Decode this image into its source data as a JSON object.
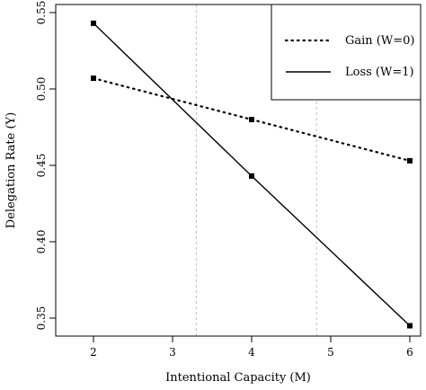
{
  "chart_data": {
    "type": "line",
    "xlabel": "Intentional Capacity (M)",
    "ylabel": "Delegation Rate (Y)",
    "xlim": [
      2,
      6
    ],
    "ylim": [
      0.345,
      0.55
    ],
    "xticks": [
      2,
      3,
      4,
      5,
      6
    ],
    "yticks": [
      0.35,
      0.4,
      0.45,
      0.5,
      0.55
    ],
    "ytick_labels": [
      "0.35",
      "0.40",
      "0.45",
      "0.50",
      "0.55"
    ],
    "reference_lines_x": [
      3.3,
      4.82
    ],
    "grid": false,
    "legend_position": "top-right",
    "series": [
      {
        "name": "Gain (W=0)",
        "style": "dotted",
        "x": [
          2,
          4,
          6
        ],
        "y": [
          0.507,
          0.48,
          0.453
        ]
      },
      {
        "name": "Loss (W=1)",
        "style": "solid",
        "x": [
          2,
          4,
          6
        ],
        "y": [
          0.543,
          0.443,
          0.345
        ]
      }
    ]
  }
}
